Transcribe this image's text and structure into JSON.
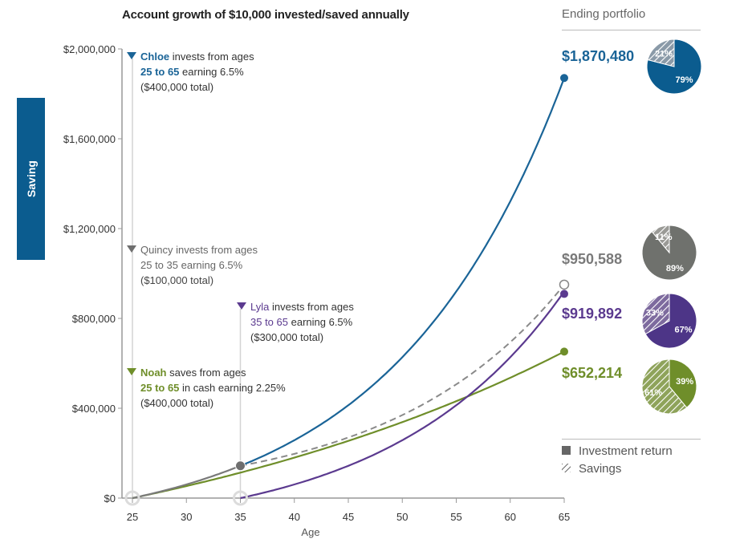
{
  "title": "Account growth of $10,000 invested/saved annually",
  "side_tab": "Saving",
  "ending_portfolio": {
    "title": "Ending portfolio",
    "legend": [
      {
        "label": "Investment return",
        "pattern": "solid"
      },
      {
        "label": "Savings",
        "pattern": "hatch"
      }
    ]
  },
  "annotations": {
    "chloe": {
      "name": "Chloe",
      "line1_rest": " invests from ages",
      "ages": "25 to 65",
      "line2_rest": " earning 6.5%",
      "line3": "($400,000 total)"
    },
    "quincy": {
      "name": "Quincy",
      "line1_rest": " invests from ages",
      "ages": "25 to 35",
      "line2_rest": " earning 6.5%",
      "line3": "($100,000 total)"
    },
    "lyla": {
      "name": "Lyla",
      "line1_rest": " invests from ages",
      "ages": "35 to 65",
      "line2_rest": " earning 6.5%",
      "line3": "($300,000 total)"
    },
    "noah": {
      "name": "Noah",
      "line1_rest": " saves from ages",
      "ages": "25 to 65",
      "line2_rest": " in cash earning 2.25%",
      "line3": "($400,000 total)"
    }
  },
  "chart_data": {
    "type": "line",
    "title": "Account growth of $10,000 invested/saved annually",
    "xlabel": "Age",
    "ylabel": "",
    "xlim": [
      25,
      65
    ],
    "ylim": [
      0,
      2000000
    ],
    "x_ticks": [
      25,
      30,
      35,
      40,
      45,
      50,
      55,
      60,
      65
    ],
    "y_ticks": [
      0,
      400000,
      800000,
      1200000,
      1600000,
      2000000
    ],
    "y_tick_labels": [
      "$0",
      "$400,000",
      "$800,000",
      "$1,200,000",
      "$1,600,000",
      "$2,000,000"
    ],
    "series": [
      {
        "name": "Chloe",
        "color": "#1a6497",
        "style": "solid",
        "start_age": 25,
        "contribution_end_age": 65,
        "rate": 0.065,
        "annual": 10000,
        "end_value": 1870480,
        "end_label": "$1,870,480",
        "pie": {
          "investment_return": 79,
          "savings": 21
        },
        "pie_labels": {
          "investment_return": "79%",
          "savings": "21%"
        }
      },
      {
        "name": "Quincy",
        "color": "#7a7a7a",
        "style": "dashed",
        "start_age": 25,
        "contribution_end_age": 35,
        "rate": 0.065,
        "annual": 10000,
        "end_value": 950588,
        "end_label": "$950,588",
        "pie": {
          "investment_return": 89,
          "savings": 11
        },
        "pie_labels": {
          "investment_return": "89%",
          "savings": "11%"
        }
      },
      {
        "name": "Lyla",
        "color": "#5b3a8f",
        "style": "solid",
        "start_age": 35,
        "contribution_end_age": 65,
        "rate": 0.065,
        "annual": 10000,
        "end_value": 919892,
        "end_label": "$919,892",
        "pie": {
          "investment_return": 67,
          "savings": 33
        },
        "pie_labels": {
          "investment_return": "67%",
          "savings": "33%"
        }
      },
      {
        "name": "Noah",
        "color": "#6f8e2a",
        "style": "solid",
        "start_age": 25,
        "contribution_end_age": 65,
        "rate": 0.0225,
        "annual": 10000,
        "end_value": 652214,
        "end_label": "$652,214",
        "pie": {
          "investment_return": 39,
          "savings": 61
        },
        "pie_labels": {
          "investment_return": "39%",
          "savings": "61%"
        }
      }
    ],
    "legend_position": "right",
    "grid": false
  }
}
